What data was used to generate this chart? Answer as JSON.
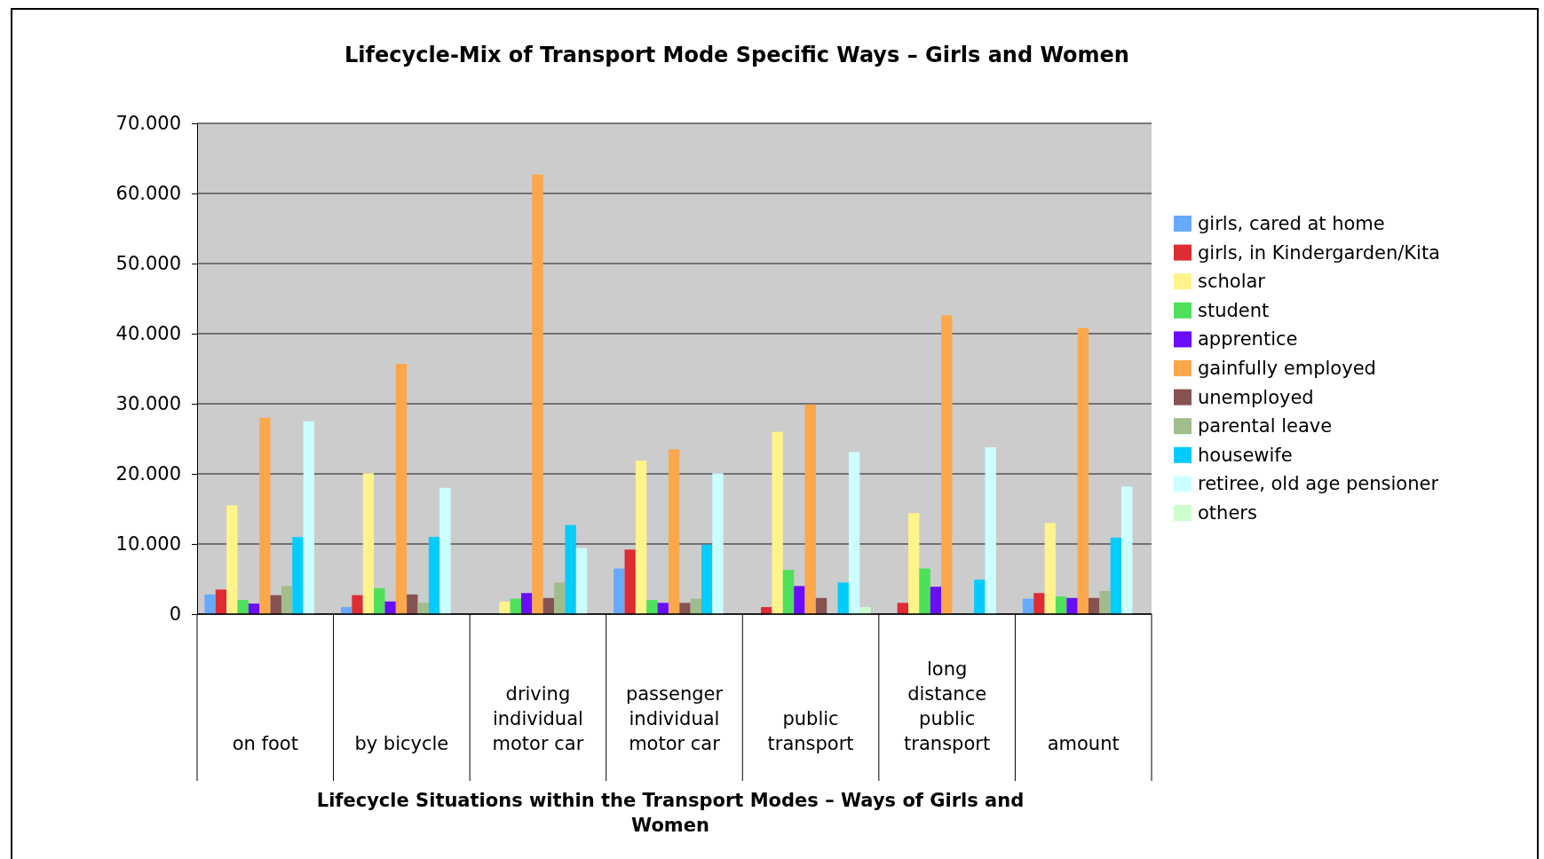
{
  "chart_data": {
    "type": "bar",
    "title": "Lifecycle-Mix of Transport Mode Specific Ways – Girls and Women",
    "xlabel": "Lifecycle Situations within the Transport Modes – Ways of Girls and Women",
    "categories": [
      "on foot",
      "by bicycle",
      "driving individual motor car",
      "passenger individual motor car",
      "public transport",
      "long distance public transport",
      "amount"
    ],
    "series": [
      {
        "name": "girls, cared at home",
        "color": "#66aaff",
        "values": [
          2800,
          1000,
          0,
          6500,
          0,
          0,
          2200
        ]
      },
      {
        "name": "girls, in Kindergarden/Kita",
        "color": "#dd2c33",
        "values": [
          3500,
          2700,
          0,
          9200,
          1000,
          1600,
          3000
        ]
      },
      {
        "name": "scholar",
        "color": "#fff38a",
        "values": [
          15500,
          20100,
          1800,
          21900,
          26000,
          14400,
          13000
        ]
      },
      {
        "name": "student",
        "color": "#4ee05a",
        "values": [
          2000,
          3700,
          2200,
          2000,
          6300,
          6500,
          2500
        ]
      },
      {
        "name": "apprentice",
        "color": "#6a0dff",
        "values": [
          1500,
          1800,
          3000,
          1600,
          4000,
          3900,
          2300
        ]
      },
      {
        "name": "gainfully employed",
        "color": "#fca74a",
        "values": [
          28000,
          35700,
          62700,
          23500,
          29900,
          42600,
          40800
        ]
      },
      {
        "name": "unemployed",
        "color": "#875252",
        "values": [
          2700,
          2800,
          2300,
          1600,
          2300,
          0,
          2300
        ]
      },
      {
        "name": "parental leave",
        "color": "#a1bd8d",
        "values": [
          4000,
          1600,
          4500,
          2200,
          0,
          0,
          3300
        ]
      },
      {
        "name": "housewife",
        "color": "#00ccff",
        "values": [
          11000,
          11000,
          12700,
          9900,
          4500,
          4900,
          10900
        ]
      },
      {
        "name": "retiree, old age pensioner",
        "color": "#ccffff",
        "values": [
          27500,
          18000,
          9400,
          20100,
          23100,
          23800,
          18200
        ]
      },
      {
        "name": "others",
        "color": "#ccffcc",
        "values": [
          0,
          0,
          0,
          0,
          1000,
          0,
          0
        ]
      }
    ],
    "ylim": [
      0,
      70000
    ],
    "yticks": [
      {
        "value": 0,
        "label": "0"
      },
      {
        "value": 10000,
        "label": "10.000"
      },
      {
        "value": 20000,
        "label": "20.000"
      },
      {
        "value": 30000,
        "label": "30.000"
      },
      {
        "value": 40000,
        "label": "40.000"
      },
      {
        "value": 50000,
        "label": "50.000"
      },
      {
        "value": 60000,
        "label": "60.000"
      },
      {
        "value": 70000,
        "label": "70.000"
      }
    ],
    "grid": "y",
    "legend": "right"
  }
}
